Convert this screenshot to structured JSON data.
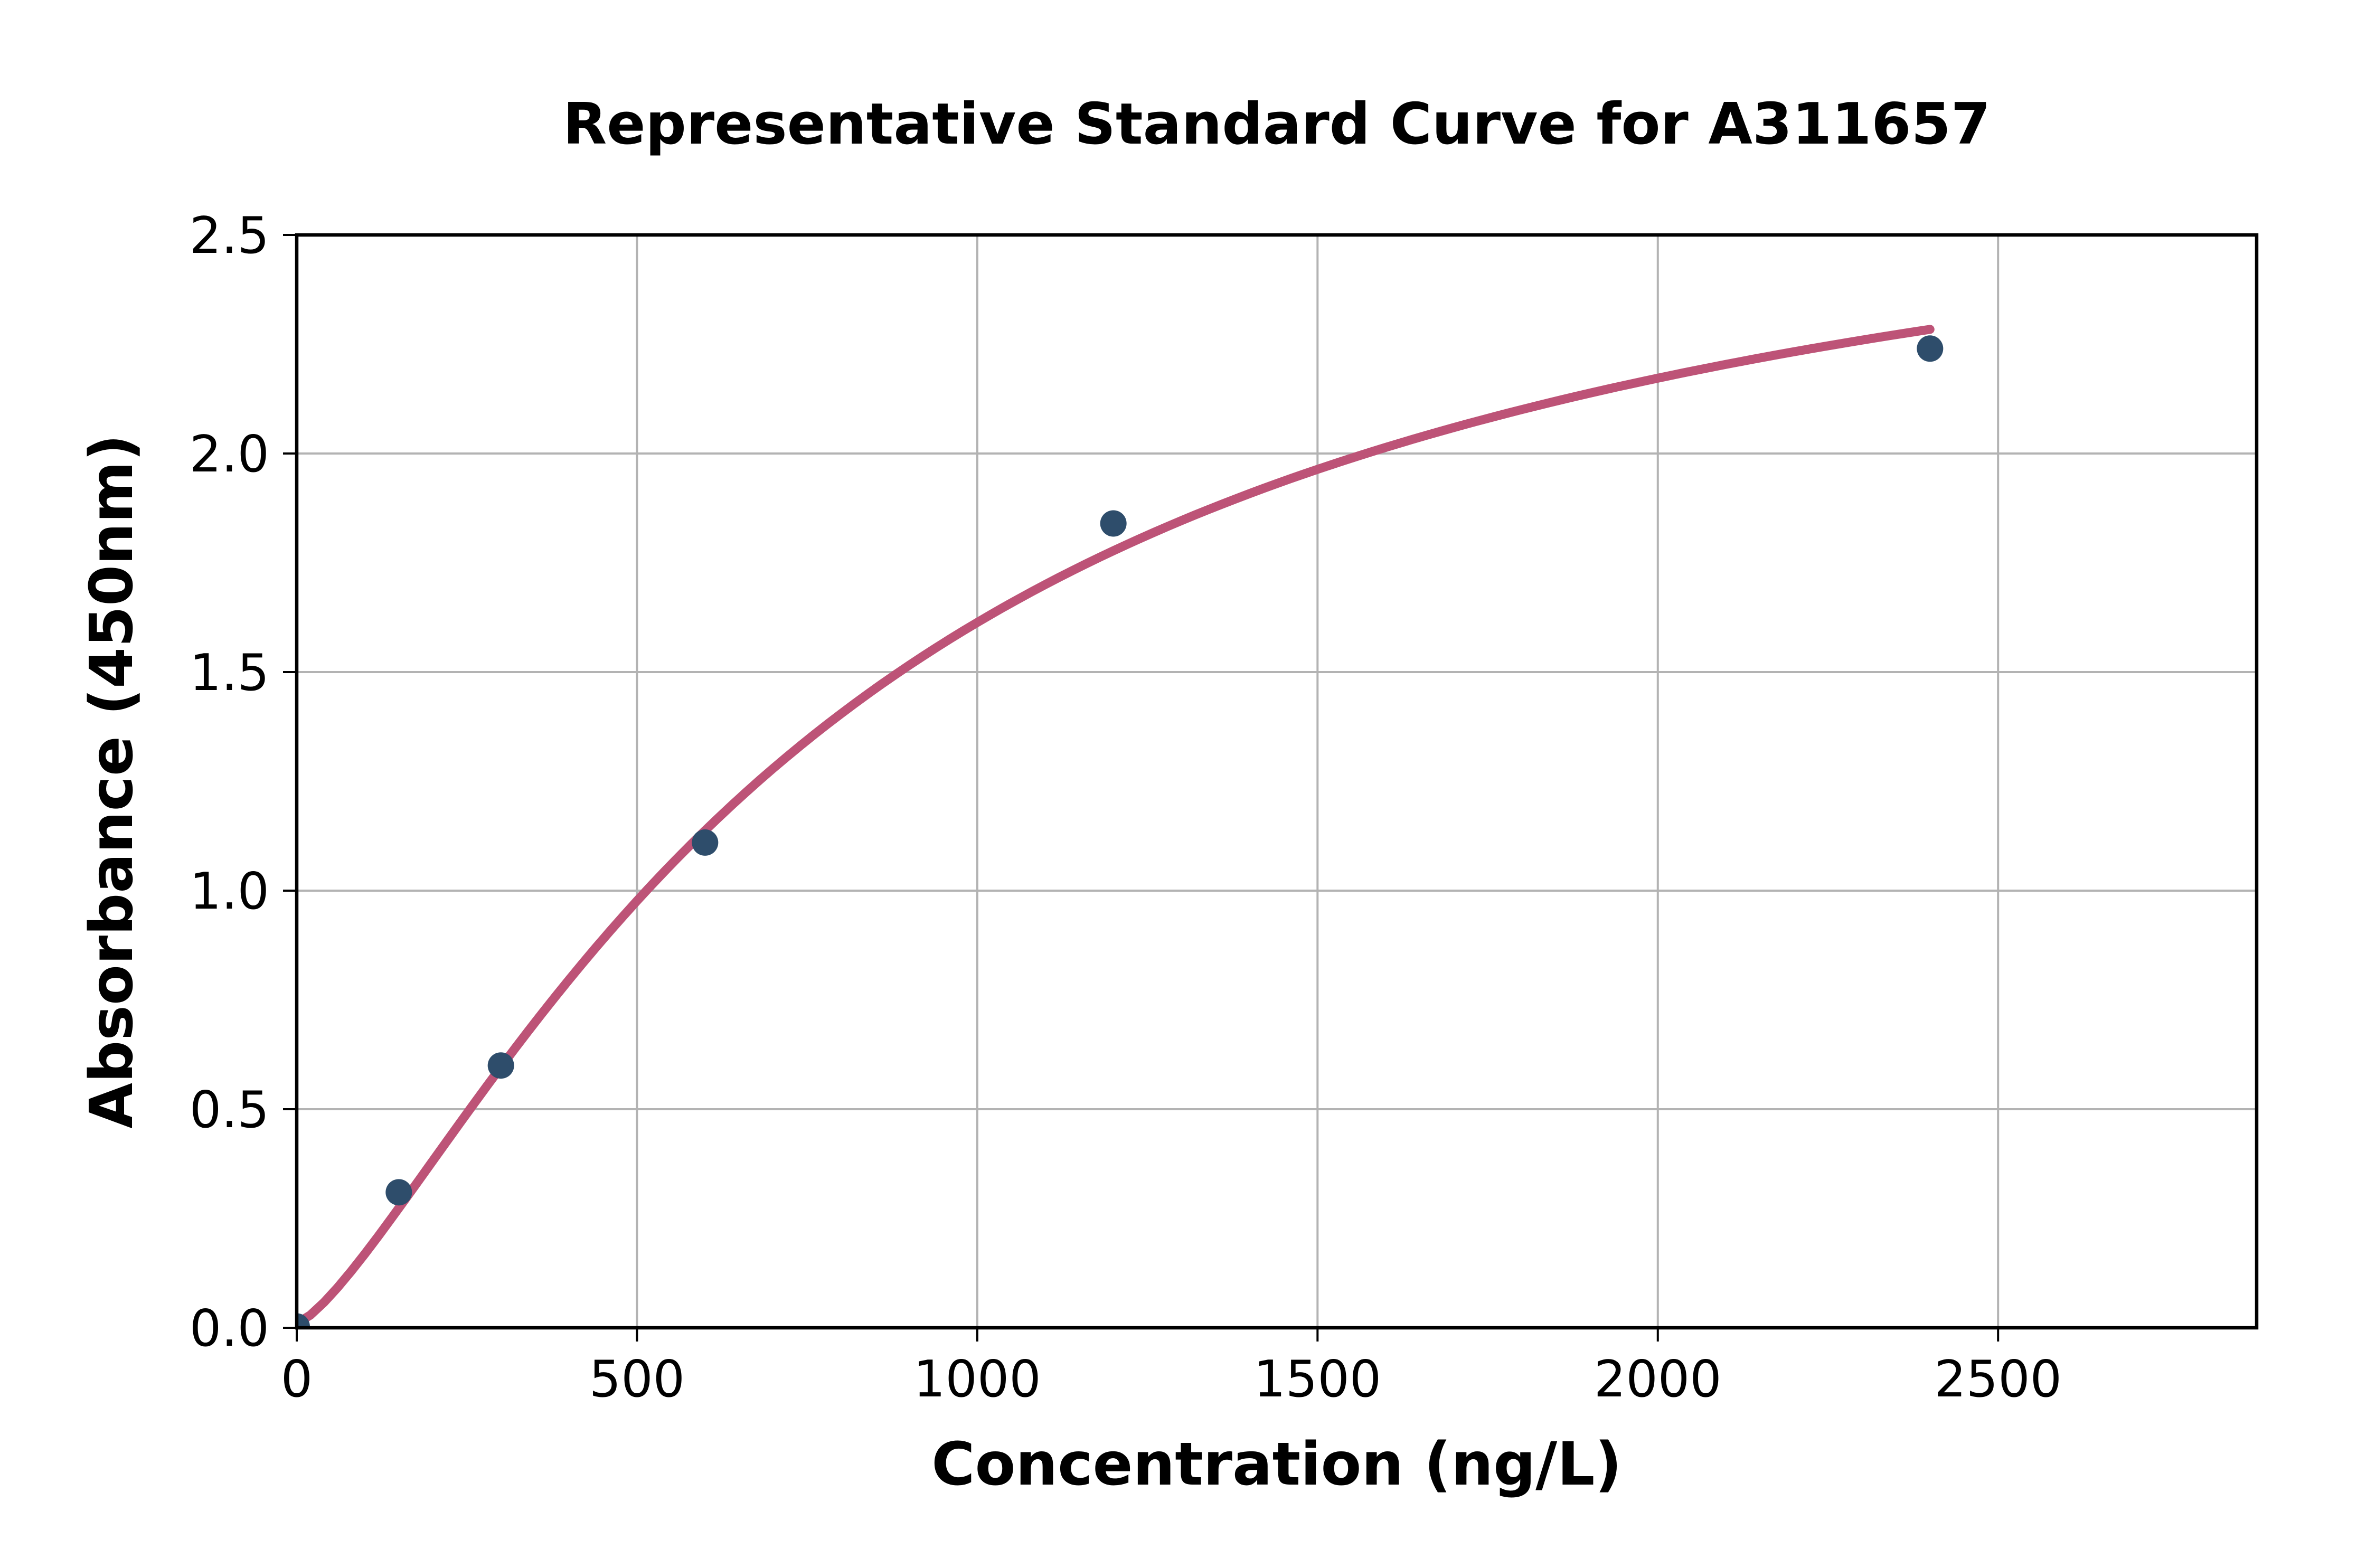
{
  "figure": {
    "background": "#ffffff"
  },
  "chart_data": {
    "type": "scatter",
    "title": "Representative Standard Curve for A311657",
    "xlabel": "Concentration (ng/L)",
    "ylabel": "Absorbance (450nm)",
    "xlim": [
      0,
      2880
    ],
    "ylim": [
      0,
      2.5
    ],
    "grid": true,
    "legend": "none",
    "x_ticks": {
      "values": [
        0,
        500,
        1000,
        1500,
        2000,
        2500
      ],
      "labels": [
        "0",
        "500",
        "1000",
        "1500",
        "2000",
        "2500"
      ]
    },
    "y_ticks": {
      "values": [
        0,
        0.5,
        1.0,
        1.5,
        2.0,
        2.5
      ],
      "labels": [
        "0.0",
        "0.5",
        "1.0",
        "1.5",
        "2.0",
        "2.5"
      ]
    },
    "series": [
      {
        "name": "standard-points",
        "type": "scatter",
        "color": "#2e4d6b",
        "points": [
          [
            0,
            0.003
          ],
          [
            150,
            0.31
          ],
          [
            300,
            0.6
          ],
          [
            600,
            1.11
          ],
          [
            1200,
            1.84
          ],
          [
            2400,
            2.24
          ]
        ]
      },
      {
        "name": "4pl-fit-curve",
        "type": "line",
        "color": "#bd5377",
        "fit_4pl": {
          "a": 0.01,
          "b": 1.35,
          "c": 800,
          "d": 2.8
        },
        "x_min": 0,
        "x_max": 2400
      }
    ],
    "colors": {
      "curve": "#bd5377",
      "points": "#2e4d6b",
      "grid": "#b3b3b3",
      "axes": "#000000",
      "text": "#000000",
      "background": "#ffffff"
    }
  }
}
